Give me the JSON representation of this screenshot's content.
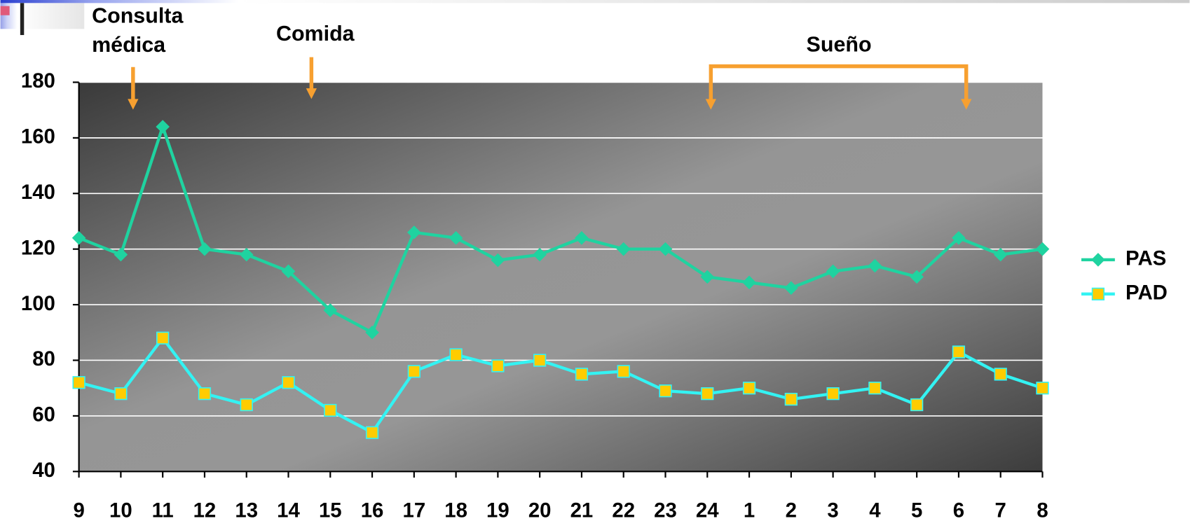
{
  "chart_data": {
    "type": "line",
    "annotations": [
      "Consulta médica",
      "Comida",
      "Sueño"
    ],
    "categories": [
      "9",
      "10",
      "11",
      "12",
      "13",
      "14",
      "15",
      "16",
      "17",
      "18",
      "19",
      "20",
      "21",
      "22",
      "23",
      "24",
      "1",
      "2",
      "3",
      "4",
      "5",
      "6",
      "7",
      "8"
    ],
    "series": [
      {
        "name": "PAS",
        "color": "#1fd3a0",
        "marker": "diamond",
        "marker_color": "#1fd3a0",
        "values": [
          124,
          118,
          164,
          120,
          118,
          112,
          98,
          90,
          126,
          124,
          116,
          118,
          124,
          120,
          120,
          110,
          108,
          106,
          112,
          114,
          110,
          124,
          118,
          120
        ]
      },
      {
        "name": "PAD",
        "color": "#33f3f3",
        "marker": "square",
        "marker_color": "#ffcc00",
        "values": [
          72,
          68,
          88,
          68,
          64,
          72,
          62,
          54,
          76,
          82,
          78,
          80,
          75,
          76,
          69,
          68,
          70,
          66,
          68,
          70,
          64,
          83,
          75,
          70
        ]
      }
    ],
    "ylim": [
      40,
      180
    ],
    "yticks": [
      40,
      60,
      80,
      100,
      120,
      140,
      160,
      180
    ],
    "grid": true,
    "legend": "right"
  }
}
